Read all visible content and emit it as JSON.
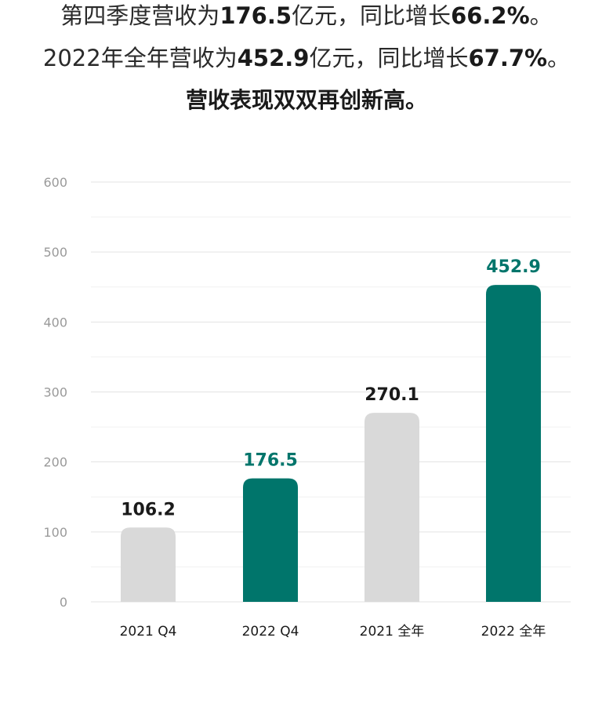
{
  "headline": {
    "line1": {
      "pre": "第四季度营收为",
      "value": "176.5",
      "mid": "亿元，同比增长",
      "growth": "66.2%",
      "post": "。"
    },
    "line2": {
      "pre": "2022年全年营收为",
      "value": "452.9",
      "mid": "亿元，同比增长",
      "growth": "67.7%",
      "post": "。"
    },
    "line3": "营收表现双双再创新高。"
  },
  "colors": {
    "highlight": "#00756b",
    "muted": "#d9d9d9",
    "grid": "#e3e3e3",
    "axis_text": "#9a9a9a"
  },
  "chart_data": {
    "type": "bar",
    "categories": [
      "2021 Q4",
      "2022 Q4",
      "2021 全年",
      "2022 全年"
    ],
    "values": [
      106.2,
      176.5,
      270.1,
      452.9
    ],
    "value_labels": [
      "106.2",
      "176.5",
      "270.1",
      "452.9"
    ],
    "highlighted": [
      false,
      true,
      false,
      true
    ],
    "yticks": [
      0,
      100,
      200,
      300,
      400,
      500,
      600
    ],
    "ylim": [
      0,
      600
    ],
    "grid": true
  }
}
